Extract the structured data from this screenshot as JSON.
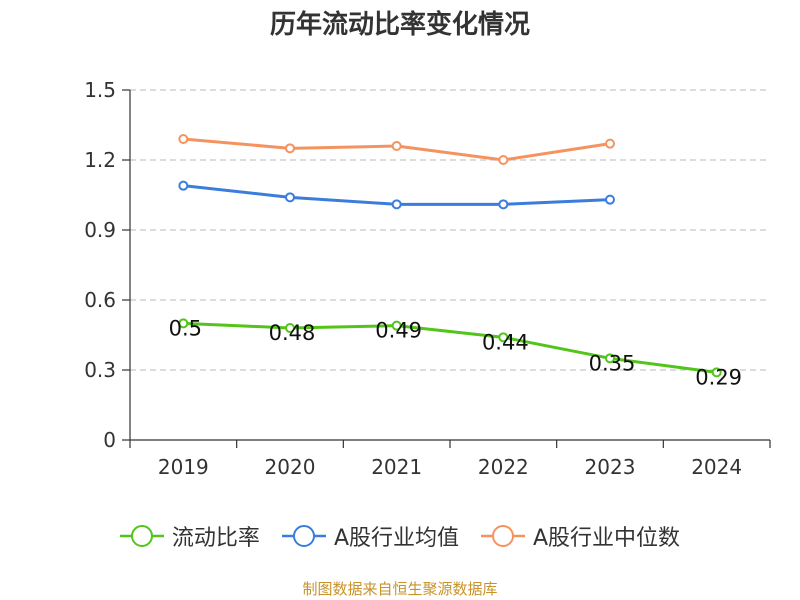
{
  "chart_data": {
    "type": "line",
    "title": "历年流动比率变化情况",
    "categories": [
      "2019",
      "2020",
      "2021",
      "2022",
      "2023",
      "2024"
    ],
    "ylim": [
      0,
      1.5
    ],
    "yticks": [
      "0",
      "0.3",
      "0.6",
      "0.9",
      "1.2",
      "1.5"
    ],
    "grid": true,
    "legend_position": "bottom",
    "series": [
      {
        "name": "流动比率",
        "color": "#52c41a",
        "values": [
          0.5,
          0.48,
          0.49,
          0.44,
          0.35,
          0.29
        ],
        "data_labels": [
          "0.5",
          "0.48",
          "0.49",
          "0.44",
          "0.35",
          "0.29"
        ]
      },
      {
        "name": "A股行业均值",
        "color": "#3b7ddd",
        "values": [
          1.09,
          1.04,
          1.01,
          1.01,
          1.03,
          null
        ]
      },
      {
        "name": "A股行业中位数",
        "color": "#f59360",
        "values": [
          1.29,
          1.25,
          1.26,
          1.2,
          1.27,
          null
        ]
      }
    ]
  },
  "footer": {
    "source": "制图数据来自恒生聚源数据库"
  }
}
